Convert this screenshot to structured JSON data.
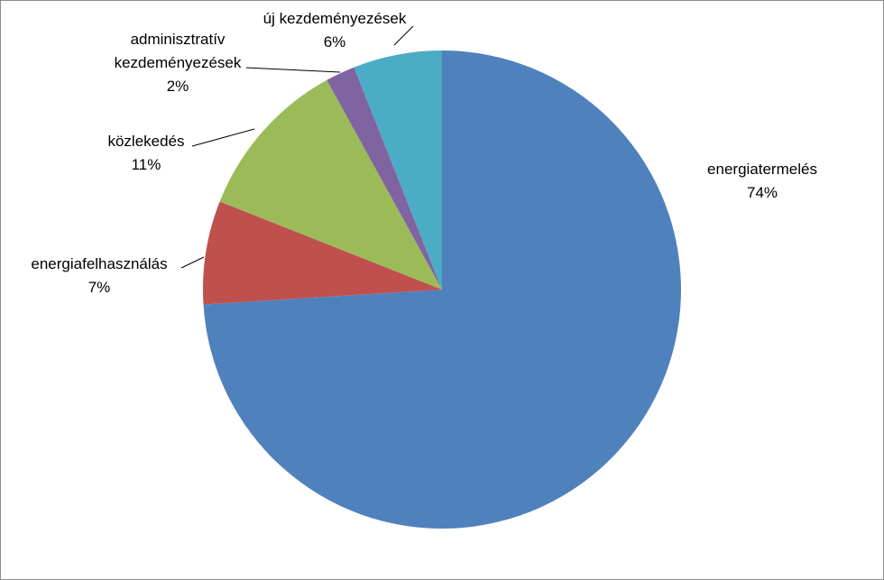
{
  "chart_data": {
    "type": "pie",
    "title": "",
    "slices": [
      {
        "name": "energiatermelés",
        "value": 74,
        "label_lines": [
          "energiatermelés"
        ],
        "pct_text": "74%",
        "color": "#4F81BD"
      },
      {
        "name": "energiafelhasználás",
        "value": 7,
        "label_lines": [
          "energiafelhasználás"
        ],
        "pct_text": "7%",
        "color": "#C0504D"
      },
      {
        "name": "közlekedés",
        "value": 11,
        "label_lines": [
          "közlekedés"
        ],
        "pct_text": "11%",
        "color": "#9BBB59"
      },
      {
        "name": "adminisztratív kezdeményezések",
        "value": 2,
        "label_lines": [
          "adminisztratív",
          "kezdeményezések"
        ],
        "pct_text": "2%",
        "color": "#8064A2"
      },
      {
        "name": "új kezdeményezések",
        "value": 6,
        "label_lines": [
          "új kezdeményezések"
        ],
        "pct_text": "6%",
        "color": "#4BACC6"
      }
    ],
    "start_angle_deg": 0,
    "direction": "clockwise",
    "legend": "none"
  }
}
